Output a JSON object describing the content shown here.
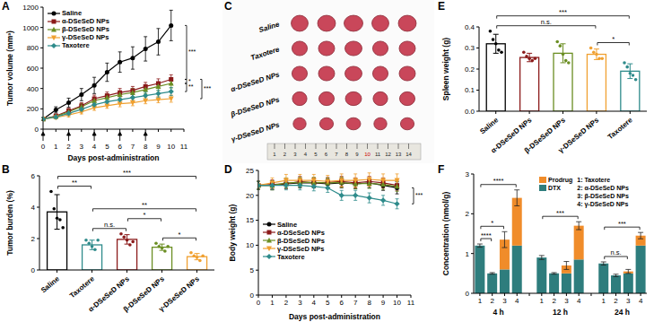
{
  "chart_data": [
    {
      "panel": "A",
      "type": "line",
      "x_label": "Days post-administration",
      "y_label": "Tumor volume (mm³)",
      "legend": "upper left",
      "x": [
        0,
        1,
        2,
        3,
        4,
        5,
        6,
        7,
        8,
        9,
        10
      ],
      "xlim": [
        0,
        11
      ],
      "xticks": [
        0,
        1,
        2,
        3,
        4,
        5,
        6,
        7,
        8,
        9,
        10,
        11
      ],
      "ylim": [
        0,
        1200
      ],
      "yticks": [
        0,
        200,
        400,
        600,
        800,
        1000,
        1200
      ],
      "dose_days": [
        0,
        2,
        4,
        6,
        8
      ],
      "series": [
        {
          "name": "Saline",
          "color": "#000000",
          "marker": "circle",
          "values": [
            100,
            190,
            260,
            340,
            430,
            560,
            660,
            700,
            790,
            860,
            1020
          ],
          "errors": [
            15,
            30,
            45,
            60,
            80,
            90,
            100,
            110,
            120,
            130,
            150
          ]
        },
        {
          "name": "α-DSeSeD NPs",
          "color": "#8B1A1A",
          "marker": "square",
          "values": [
            100,
            130,
            180,
            230,
            300,
            330,
            360,
            380,
            420,
            450,
            490
          ],
          "errors": [
            10,
            20,
            25,
            30,
            35,
            35,
            40,
            40,
            40,
            45,
            45
          ]
        },
        {
          "name": "β-DSeSeD NPs",
          "color": "#6B8E23",
          "marker": "triangle",
          "values": [
            100,
            125,
            170,
            220,
            280,
            310,
            340,
            360,
            390,
            420,
            450
          ],
          "errors": [
            10,
            20,
            25,
            30,
            30,
            35,
            35,
            40,
            40,
            40,
            45
          ]
        },
        {
          "name": "γ-DSeSeD NPs",
          "color": "#F0A030",
          "marker": "triangle-down",
          "values": [
            100,
            115,
            140,
            170,
            210,
            230,
            250,
            260,
            280,
            290,
            300
          ],
          "errors": [
            10,
            15,
            20,
            20,
            25,
            25,
            30,
            30,
            30,
            30,
            35
          ]
        },
        {
          "name": "Taxotere",
          "color": "#2E8B8B",
          "marker": "diamond",
          "values": [
            100,
            120,
            155,
            195,
            240,
            270,
            290,
            310,
            330,
            350,
            370
          ],
          "errors": [
            10,
            15,
            20,
            25,
            25,
            30,
            30,
            35,
            35,
            35,
            40
          ]
        }
      ],
      "comparisons": [
        {
          "from": "Saline",
          "to": "α-DSeSeD NPs",
          "label": "***"
        },
        {
          "from": "α-DSeSeD NPs",
          "to": "β-DSeSeD NPs",
          "label": "*"
        },
        {
          "from": "β-DSeSeD NPs",
          "to": "Taxotere",
          "label": "**"
        },
        {
          "from": "α-DSeSeD NPs",
          "to": "γ-DSeSeD NPs",
          "label": "***"
        }
      ]
    },
    {
      "panel": "B",
      "type": "bar",
      "y_label": "Tumor burden (%)",
      "categories": [
        "Saline",
        "Taxotere",
        "α-DSeSeD NPs",
        "β-DSeSeD NPs",
        "γ-DSeSeD NPs"
      ],
      "values": [
        3.7,
        1.6,
        1.95,
        1.45,
        0.85
      ],
      "errors": [
        1.1,
        0.3,
        0.3,
        0.2,
        0.2
      ],
      "points": [
        [
          5.0,
          3.9,
          3.3,
          3.2,
          2.7
        ],
        [
          1.9,
          1.7,
          1.5,
          1.3,
          1.9
        ],
        [
          2.3,
          2.1,
          1.9,
          1.6,
          1.8
        ],
        [
          1.7,
          1.5,
          1.4,
          1.2,
          1.5
        ],
        [
          1.1,
          0.9,
          0.8,
          0.6,
          0.9
        ]
      ],
      "colors": [
        "#000000",
        "#2E8B8B",
        "#8B1A1A",
        "#6B8E23",
        "#F0A030"
      ],
      "ylim": [
        0,
        6
      ],
      "yticks": [
        0,
        2,
        4,
        6
      ],
      "comparisons": [
        {
          "from": 0,
          "to": 1,
          "label": "**"
        },
        {
          "from": 0,
          "to": 4,
          "label": "***"
        },
        {
          "from": 1,
          "to": 2,
          "label": "n.s."
        },
        {
          "from": 2,
          "to": 3,
          "label": "*"
        },
        {
          "from": 3,
          "to": 4,
          "label": "*"
        },
        {
          "from": 1,
          "to": 4,
          "label": "**"
        }
      ]
    },
    {
      "panel": "C",
      "type": "photo",
      "rows": [
        "Saline",
        "Taxotere",
        "α-DSeSeD NPs",
        "β-DSeSeD NPs",
        "γ-DSeSeD NPs"
      ],
      "tumor_counts": [
        5,
        5,
        5,
        5,
        5
      ],
      "ruler_ticks": [
        1,
        2,
        3,
        4,
        5,
        6,
        7,
        8,
        9,
        10,
        11,
        12,
        13,
        14
      ]
    },
    {
      "panel": "D",
      "type": "line",
      "x_label": "Days post-administration",
      "y_label": "Body weight (g)",
      "legend": "center left",
      "x": [
        0,
        1,
        2,
        3,
        4,
        5,
        6,
        7,
        8,
        9,
        10
      ],
      "xlim": [
        0,
        11
      ],
      "xticks": [
        0,
        1,
        2,
        3,
        4,
        5,
        6,
        7,
        8,
        9,
        10,
        11
      ],
      "ylim": [
        0,
        25
      ],
      "yticks": [
        0,
        5,
        10,
        15,
        20,
        25
      ],
      "series": [
        {
          "name": "Saline",
          "color": "#000000",
          "marker": "circle",
          "values": [
            22,
            22,
            22.3,
            22.5,
            22.5,
            22.3,
            22.5,
            22.3,
            22.5,
            22,
            21.5
          ],
          "errors": [
            0.8,
            0.9,
            0.9,
            1,
            1,
            1,
            1,
            1,
            1,
            1,
            1.2
          ]
        },
        {
          "name": "α-DSeSeD NPs",
          "color": "#8B1A1A",
          "marker": "square",
          "values": [
            22,
            22.2,
            22.3,
            22.8,
            22.5,
            22.6,
            22.8,
            22.5,
            22.8,
            22.5,
            22
          ],
          "errors": [
            0.8,
            0.9,
            0.9,
            1,
            1,
            1,
            1,
            1,
            1,
            1,
            1
          ]
        },
        {
          "name": "β-DSeSeD NPs",
          "color": "#6B8E23",
          "marker": "triangle",
          "values": [
            22,
            22,
            22.5,
            22.6,
            22.6,
            22.5,
            22.6,
            22.3,
            22.4,
            22.2,
            21.8
          ],
          "errors": [
            0.8,
            0.9,
            1,
            1,
            1,
            1,
            1,
            1,
            1,
            1,
            1
          ]
        },
        {
          "name": "γ-DSeSeD NPs",
          "color": "#F0A030",
          "marker": "triangle-down",
          "values": [
            22,
            22.5,
            23,
            23,
            23,
            22.8,
            23,
            23,
            23.2,
            23,
            23
          ],
          "errors": [
            0.8,
            1,
            1.2,
            1.2,
            1.2,
            1.2,
            1.3,
            1.3,
            1.3,
            1.3,
            1.3
          ]
        },
        {
          "name": "Taxotere",
          "color": "#2E8B8B",
          "marker": "diamond",
          "values": [
            22,
            22,
            22,
            22,
            21.8,
            21.5,
            20,
            20,
            19.5,
            19,
            18.3
          ],
          "errors": [
            0.8,
            0.8,
            0.9,
            0.9,
            0.9,
            0.9,
            1,
            1,
            1,
            1,
            1
          ]
        }
      ],
      "comparisons": [
        {
          "from": "Saline",
          "to": "Taxotere",
          "label": "***"
        }
      ]
    },
    {
      "panel": "E",
      "type": "bar",
      "y_label": "Spleen weight (g)",
      "categories": [
        "Saline",
        "α-DSeSeD NPs",
        "β-DSeSeD NPs",
        "γ-DSeSeD NPs",
        "Taxotere"
      ],
      "values": [
        0.32,
        0.255,
        0.275,
        0.27,
        0.19
      ],
      "errors": [
        0.045,
        0.02,
        0.045,
        0.025,
        0.035
      ],
      "points": [
        [
          0.38,
          0.34,
          0.32,
          0.29,
          0.28
        ],
        [
          0.28,
          0.26,
          0.25,
          0.24,
          0.25
        ],
        [
          0.33,
          0.31,
          0.27,
          0.24,
          0.23
        ],
        [
          0.3,
          0.28,
          0.27,
          0.25,
          0.25
        ],
        [
          0.23,
          0.21,
          0.18,
          0.17,
          0.15
        ]
      ],
      "colors": [
        "#000000",
        "#8B1A1A",
        "#6B8E23",
        "#F0A030",
        "#2E8B8B"
      ],
      "ylim": [
        0,
        0.4
      ],
      "yticks": [
        {
          "value": 0,
          "label": "0.0"
        },
        0.1,
        0.2,
        0.3,
        0.4
      ],
      "comparisons": [
        {
          "from": 0,
          "to": 3,
          "label": "n.s."
        },
        {
          "from": 0,
          "to": 4,
          "label": "***"
        },
        {
          "from": 3,
          "to": 4,
          "label": "*"
        }
      ]
    },
    {
      "panel": "F",
      "type": "bar",
      "stacked": true,
      "y_label": "Concentration (nmol/g)",
      "legend": "upper right",
      "categories": [
        "1",
        "2",
        "3",
        "4",
        null,
        "1",
        "2",
        "3",
        "4",
        null,
        "1",
        "2",
        "3",
        "4"
      ],
      "groups": [
        {
          "label": "4 h",
          "from": 0,
          "to": 3
        },
        {
          "label": "12 h",
          "from": 5,
          "to": 8
        },
        {
          "label": "24 h",
          "from": 10,
          "to": 13
        }
      ],
      "key": [
        "1: Taxotere",
        "2: α-DSeSeD NPs",
        "3: β-DSeSeD NPs",
        "4: γ-DSeSeD NPs"
      ],
      "ylim": [
        0,
        3
      ],
      "yticks": [
        0,
        1,
        2,
        3
      ],
      "series": [
        {
          "name": "Prodrug",
          "color": "#F08C2A",
          "values": [
            0,
            0,
            0.75,
            1.2,
            null,
            0,
            0,
            0.2,
            0.85,
            null,
            0,
            0,
            0.05,
            0.25
          ],
          "errors": [
            null,
            null,
            0.2,
            0.2,
            null,
            null,
            null,
            0.1,
            0.1,
            null,
            null,
            null,
            0.05,
            0.08
          ]
        },
        {
          "name": "DTX",
          "color": "#2E7D7D",
          "values": [
            1.2,
            0.5,
            0.6,
            1.2,
            null,
            0.9,
            0.5,
            0.5,
            0.85,
            null,
            0.75,
            0.45,
            0.5,
            1.2
          ],
          "errors": [
            0.04,
            0.02,
            null,
            null,
            null,
            0.05,
            0.02,
            null,
            null,
            null,
            0.04,
            0.03,
            null,
            null
          ]
        }
      ],
      "comparisons": [
        {
          "from": 0,
          "to": 1,
          "label": "****"
        },
        {
          "from": 0,
          "to": 2,
          "label": "*"
        },
        {
          "from": 0,
          "to": 3,
          "label": "****"
        },
        {
          "from": 5,
          "to": 8,
          "label": "***"
        },
        {
          "from": 10,
          "to": 12,
          "label": "n.s."
        },
        {
          "from": 10,
          "to": 13,
          "label": "***"
        }
      ]
    }
  ]
}
